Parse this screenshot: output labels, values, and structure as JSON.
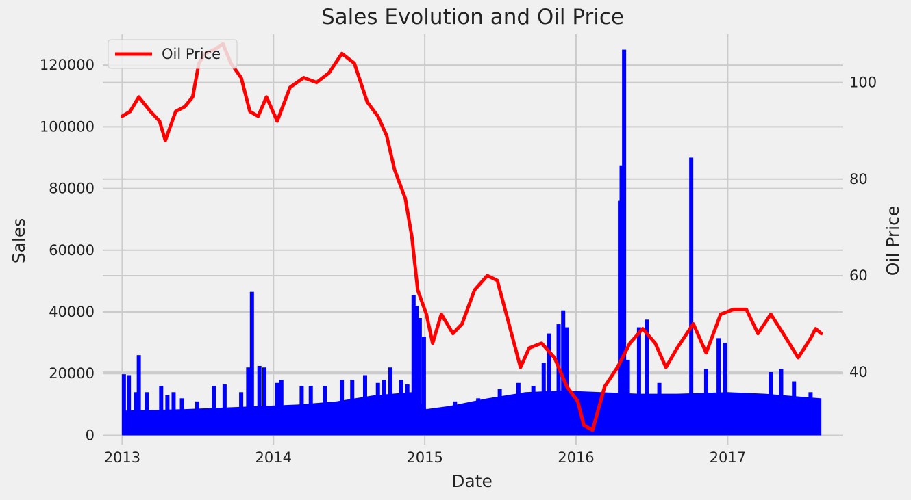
{
  "chart_data": {
    "type": "bar+line",
    "title": "Sales Evolution and Oil Price",
    "xlabel": "Date",
    "ylabel_left": "Sales",
    "ylabel_right": "Oil Price",
    "x_range": [
      "2012-11-15",
      "2017-10-05"
    ],
    "ylim_left": [
      -3000,
      130000
    ],
    "ylim_right": [
      25,
      110
    ],
    "x_ticks": [
      "2013",
      "2014",
      "2015",
      "2016",
      "2017"
    ],
    "y_ticks_left": [
      "0",
      "20000",
      "40000",
      "60000",
      "80000",
      "100000",
      "120000"
    ],
    "y_ticks_right": [
      "40",
      "60",
      "80",
      "100"
    ],
    "grid": true,
    "legend": {
      "position": "top-left",
      "entries": [
        "Oil Price"
      ]
    },
    "colors": {
      "sales": "#0000ff",
      "oil": "#ff0000",
      "background": "#f0f0f0",
      "grid": "#cbcbcb"
    },
    "sales_series": {
      "name": "Sales",
      "baseline_envelope": [
        [
          "2013-01-01",
          8000
        ],
        [
          "2013-06-01",
          8500
        ],
        [
          "2013-09-01",
          9000
        ],
        [
          "2013-12-01",
          9500
        ],
        [
          "2014-03-01",
          10000
        ],
        [
          "2014-06-01",
          11000
        ],
        [
          "2014-09-01",
          13000
        ],
        [
          "2014-12-01",
          14000
        ],
        [
          "2015-01-05",
          8500
        ],
        [
          "2015-03-01",
          9500
        ],
        [
          "2015-06-01",
          12000
        ],
        [
          "2015-09-01",
          14000
        ],
        [
          "2015-12-01",
          14500
        ],
        [
          "2016-03-01",
          14000
        ],
        [
          "2016-06-01",
          13500
        ],
        [
          "2016-09-01",
          13500
        ],
        [
          "2017-01-01",
          14000
        ],
        [
          "2017-04-01",
          13500
        ],
        [
          "2017-08-15",
          12000
        ]
      ],
      "spikes": [
        [
          "2013-01-05",
          19800
        ],
        [
          "2013-01-17",
          19500
        ],
        [
          "2013-02-03",
          14000
        ],
        [
          "2013-02-10",
          26000
        ],
        [
          "2013-03-01",
          14000
        ],
        [
          "2013-04-05",
          16000
        ],
        [
          "2013-04-20",
          13000
        ],
        [
          "2013-05-05",
          14000
        ],
        [
          "2013-05-25",
          12000
        ],
        [
          "2013-07-01",
          11000
        ],
        [
          "2013-08-10",
          16000
        ],
        [
          "2013-09-05",
          16500
        ],
        [
          "2013-10-15",
          14000
        ],
        [
          "2013-11-01",
          22000
        ],
        [
          "2013-11-10",
          46500
        ],
        [
          "2013-11-28",
          22500
        ],
        [
          "2013-12-10",
          22000
        ],
        [
          "2014-01-10",
          17000
        ],
        [
          "2014-01-20",
          18000
        ],
        [
          "2014-03-10",
          16000
        ],
        [
          "2014-04-01",
          16000
        ],
        [
          "2014-05-05",
          16000
        ],
        [
          "2014-06-15",
          18000
        ],
        [
          "2014-07-10",
          18000
        ],
        [
          "2014-08-10",
          19500
        ],
        [
          "2014-09-10",
          17000
        ],
        [
          "2014-09-25",
          18000
        ],
        [
          "2014-10-10",
          22000
        ],
        [
          "2014-11-05",
          18000
        ],
        [
          "2014-11-20",
          16500
        ],
        [
          "2014-12-05",
          45500
        ],
        [
          "2014-12-12",
          42000
        ],
        [
          "2014-12-20",
          38000
        ],
        [
          "2014-12-30",
          32000
        ],
        [
          "2015-03-15",
          11000
        ],
        [
          "2015-05-10",
          12000
        ],
        [
          "2015-07-01",
          15000
        ],
        [
          "2015-08-15",
          17000
        ],
        [
          "2015-09-20",
          16000
        ],
        [
          "2015-10-15",
          23500
        ],
        [
          "2015-10-28",
          33000
        ],
        [
          "2015-11-20",
          36000
        ],
        [
          "2015-12-01",
          40500
        ],
        [
          "2015-12-10",
          35000
        ],
        [
          "2016-04-16",
          76000
        ],
        [
          "2016-04-20",
          87500
        ],
        [
          "2016-04-26",
          125000
        ],
        [
          "2016-05-05",
          24500
        ],
        [
          "2016-06-01",
          35000
        ],
        [
          "2016-06-20",
          37500
        ],
        [
          "2016-07-20",
          17000
        ],
        [
          "2016-10-05",
          90000
        ],
        [
          "2016-11-10",
          21500
        ],
        [
          "2016-12-10",
          31500
        ],
        [
          "2016-12-25",
          30000
        ],
        [
          "2017-04-15",
          20500
        ],
        [
          "2017-05-10",
          21500
        ],
        [
          "2017-06-10",
          17500
        ],
        [
          "2017-07-20",
          14000
        ]
      ]
    },
    "oil_series": {
      "name": "Oil Price",
      "points": [
        [
          "2013-01-01",
          93
        ],
        [
          "2013-01-20",
          94
        ],
        [
          "2013-02-10",
          97
        ],
        [
          "2013-03-10",
          94
        ],
        [
          "2013-04-01",
          92
        ],
        [
          "2013-04-15",
          88
        ],
        [
          "2013-05-10",
          94
        ],
        [
          "2013-06-01",
          95
        ],
        [
          "2013-06-20",
          97
        ],
        [
          "2013-07-05",
          104
        ],
        [
          "2013-07-20",
          106
        ],
        [
          "2013-08-15",
          107
        ],
        [
          "2013-09-01",
          108
        ],
        [
          "2013-09-20",
          104
        ],
        [
          "2013-10-15",
          101
        ],
        [
          "2013-11-05",
          94
        ],
        [
          "2013-11-25",
          93
        ],
        [
          "2013-12-15",
          97
        ],
        [
          "2014-01-10",
          92
        ],
        [
          "2014-02-10",
          99
        ],
        [
          "2014-03-15",
          101
        ],
        [
          "2014-04-15",
          100
        ],
        [
          "2014-05-15",
          102
        ],
        [
          "2014-06-15",
          106
        ],
        [
          "2014-07-15",
          104
        ],
        [
          "2014-08-15",
          96
        ],
        [
          "2014-09-10",
          93
        ],
        [
          "2014-10-01",
          89
        ],
        [
          "2014-10-20",
          82
        ],
        [
          "2014-11-15",
          76
        ],
        [
          "2014-12-01",
          68
        ],
        [
          "2014-12-15",
          57
        ],
        [
          "2015-01-05",
          52
        ],
        [
          "2015-01-20",
          46
        ],
        [
          "2015-02-10",
          52
        ],
        [
          "2015-03-10",
          48
        ],
        [
          "2015-04-01",
          50
        ],
        [
          "2015-05-01",
          57
        ],
        [
          "2015-06-01",
          60
        ],
        [
          "2015-06-25",
          59
        ],
        [
          "2015-07-20",
          51
        ],
        [
          "2015-08-20",
          41
        ],
        [
          "2015-09-10",
          45
        ],
        [
          "2015-10-10",
          46
        ],
        [
          "2015-11-10",
          43
        ],
        [
          "2015-12-10",
          37
        ],
        [
          "2016-01-05",
          34
        ],
        [
          "2016-01-20",
          29
        ],
        [
          "2016-02-10",
          28
        ],
        [
          "2016-03-10",
          37
        ],
        [
          "2016-04-10",
          41
        ],
        [
          "2016-05-10",
          46
        ],
        [
          "2016-06-10",
          49
        ],
        [
          "2016-07-10",
          46
        ],
        [
          "2016-08-05",
          41
        ],
        [
          "2016-09-01",
          45
        ],
        [
          "2016-10-10",
          50
        ],
        [
          "2016-11-10",
          44
        ],
        [
          "2016-12-15",
          52
        ],
        [
          "2017-01-15",
          53
        ],
        [
          "2017-02-15",
          53
        ],
        [
          "2017-03-15",
          48
        ],
        [
          "2017-04-15",
          52
        ],
        [
          "2017-05-15",
          48
        ],
        [
          "2017-06-20",
          43
        ],
        [
          "2017-07-20",
          47
        ],
        [
          "2017-08-01",
          49
        ],
        [
          "2017-08-15",
          48
        ]
      ]
    }
  }
}
